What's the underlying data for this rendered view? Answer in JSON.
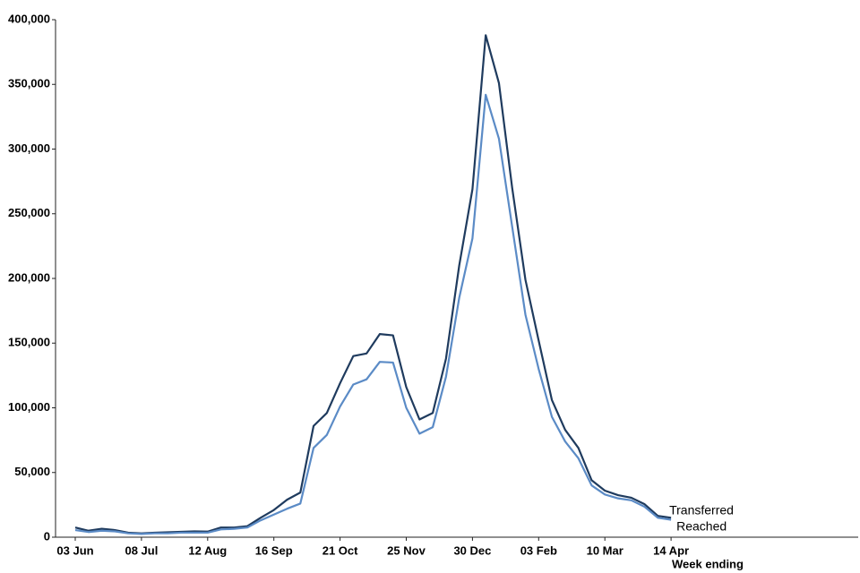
{
  "chart_data": {
    "type": "line",
    "x_label": "Week ending",
    "categories": [
      "03 Jun",
      null,
      null,
      null,
      null,
      "08 Jul",
      null,
      null,
      null,
      null,
      "12 Aug",
      null,
      null,
      null,
      null,
      "16 Sep",
      null,
      null,
      null,
      null,
      "21 Oct",
      null,
      null,
      null,
      null,
      "25 Nov",
      null,
      null,
      null,
      null,
      "30 Dec",
      null,
      null,
      null,
      null,
      "03 Feb",
      null,
      null,
      null,
      null,
      "10 Mar",
      null,
      null,
      null,
      null,
      "14 Apr"
    ],
    "series": [
      {
        "name": "Transferred",
        "color": "#1f3b5e",
        "values": [
          7500,
          5000,
          6500,
          5500,
          3500,
          3000,
          3500,
          3800,
          4200,
          4500,
          4300,
          7500,
          7500,
          8500,
          15000,
          21000,
          29000,
          34500,
          86000,
          96000,
          119000,
          140000,
          142000,
          157000,
          156000,
          116000,
          91000,
          96000,
          138000,
          210000,
          269000,
          388000,
          351000,
          270000,
          199000,
          152000,
          106000,
          83000,
          69000,
          44000,
          36000,
          32500,
          30500,
          25500,
          16500,
          15000
        ]
      },
      {
        "name": "Reached",
        "color": "#5b8bc6",
        "values": [
          5500,
          4000,
          5000,
          4500,
          3000,
          2500,
          3000,
          3000,
          3500,
          3500,
          3500,
          6000,
          6500,
          7500,
          13000,
          17500,
          22000,
          26000,
          69000,
          79000,
          101000,
          118000,
          122000,
          135500,
          135000,
          100000,
          80000,
          85000,
          124000,
          185000,
          231000,
          342000,
          308000,
          240000,
          172000,
          130000,
          93000,
          74000,
          61000,
          40000,
          33000,
          30000,
          28500,
          23500,
          15000,
          13500
        ]
      }
    ],
    "ylim": [
      0,
      400000
    ],
    "yticks": [
      0,
      {
        "value": 50000,
        "label": "50,000"
      },
      {
        "value": 100000,
        "label": "100,000"
      },
      {
        "value": 150000,
        "label": "150,000"
      },
      {
        "value": 200000,
        "label": "200,000"
      },
      {
        "value": 250000,
        "label": "250,000"
      },
      {
        "value": 300000,
        "label": "300,000"
      },
      {
        "value": 350000,
        "label": "350,000"
      },
      {
        "value": 400000,
        "label": "400,000"
      }
    ],
    "grid": false
  }
}
